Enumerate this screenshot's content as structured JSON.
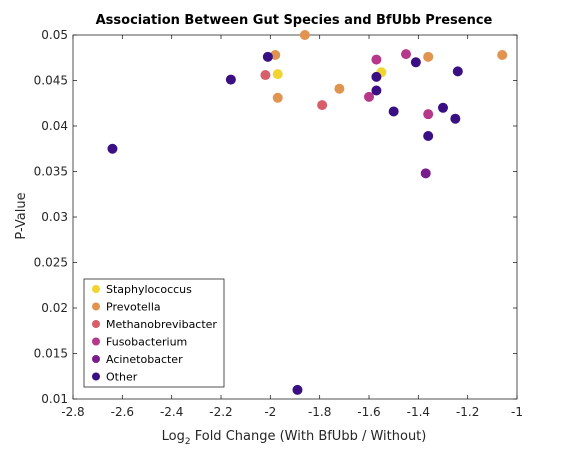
{
  "chart_data": {
    "type": "scatter",
    "title": "Association Between Gut Species and BfUbb Presence",
    "xlabel_prefix": "Log",
    "xlabel_sub": "2",
    "xlabel_suffix": " Fold Change (With BfUbb / Without)",
    "ylabel": "P-Value",
    "xlim": [
      -2.8,
      -1.0
    ],
    "ylim": [
      0.01,
      0.05
    ],
    "xticks": [
      -2.8,
      -2.6,
      -2.4,
      -2.2,
      -2.0,
      -1.8,
      -1.6,
      -1.4,
      -1.2,
      -1.0
    ],
    "xtick_labels": [
      "-2.8",
      "-2.6",
      "-2.4",
      "-2.2",
      "-2",
      "-1.8",
      "-1.6",
      "-1.4",
      "-1.2",
      "-1"
    ],
    "yticks": [
      0.01,
      0.015,
      0.02,
      0.025,
      0.03,
      0.035,
      0.04,
      0.045,
      0.05
    ],
    "ytick_labels": [
      "0.01",
      "0.015",
      "0.02",
      "0.025",
      "0.03",
      "0.035",
      "0.04",
      "0.045",
      "0.05"
    ],
    "grid": false,
    "legend_position": "bottom-left",
    "series": [
      {
        "name": "Staphylococcus",
        "color": "#f0d430",
        "points": [
          [
            -1.97,
            0.0457
          ],
          [
            -1.55,
            0.0459
          ]
        ]
      },
      {
        "name": "Prevotella",
        "color": "#e0944f",
        "points": [
          [
            -1.98,
            0.0478
          ],
          [
            -1.97,
            0.0431
          ],
          [
            -1.86,
            0.05
          ],
          [
            -1.72,
            0.0441
          ],
          [
            -1.36,
            0.0476
          ],
          [
            -1.06,
            0.0478
          ]
        ]
      },
      {
        "name": "Methanobrevibacter",
        "color": "#d65f6a",
        "points": [
          [
            -2.02,
            0.0456
          ],
          [
            -1.79,
            0.0423
          ]
        ]
      },
      {
        "name": "Fusobacterium",
        "color": "#b5388a",
        "points": [
          [
            -1.6,
            0.0432
          ],
          [
            -1.57,
            0.0473
          ],
          [
            -1.45,
            0.0479
          ],
          [
            -1.36,
            0.0413
          ]
        ]
      },
      {
        "name": "Acinetobacter",
        "color": "#7b1c8c",
        "points": [
          [
            -1.37,
            0.0348
          ]
        ]
      },
      {
        "name": "Other",
        "color": "#3b0f84",
        "points": [
          [
            -2.64,
            0.0375
          ],
          [
            -2.16,
            0.0451
          ],
          [
            -2.01,
            0.0476
          ],
          [
            -1.89,
            0.011
          ],
          [
            -1.57,
            0.0454
          ],
          [
            -1.57,
            0.0439
          ],
          [
            -1.5,
            0.0416
          ],
          [
            -1.41,
            0.047
          ],
          [
            -1.36,
            0.0389
          ],
          [
            -1.3,
            0.042
          ],
          [
            -1.25,
            0.0408
          ],
          [
            -1.24,
            0.046
          ]
        ]
      }
    ]
  }
}
